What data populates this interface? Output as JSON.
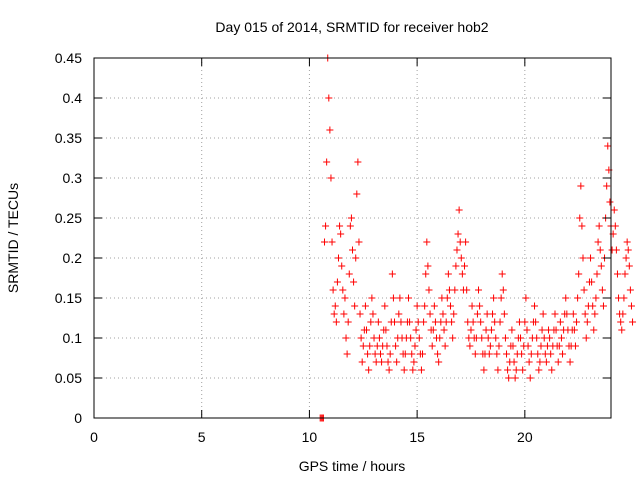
{
  "chart_data": {
    "type": "scatter",
    "title": "Day 015 of 2014, SRMTID for receiver hob2",
    "xlabel": "GPS time / hours",
    "ylabel": "SRMTID / TECUs",
    "xlim": [
      0,
      24
    ],
    "ylim": [
      0,
      0.45
    ],
    "xticks": [
      0,
      5,
      10,
      15,
      20
    ],
    "xtick_labels": [
      "0",
      "5",
      "10",
      "15",
      "20"
    ],
    "yticks": [
      0,
      0.05,
      0.1,
      0.15,
      0.2,
      0.25,
      0.3,
      0.35,
      0.4,
      0.45
    ],
    "ytick_labels": [
      "0",
      "0.05",
      "0.1",
      "0.15",
      "0.2",
      "0.25",
      "0.3",
      "0.35",
      "0.4",
      "0.45"
    ],
    "grid": true,
    "marker": "+",
    "color": "#ff0000",
    "x_start": 10.5,
    "step_hours": 0.05,
    "series": [
      {
        "name": "hob2",
        "y": [
          0.0,
          0.0,
          0.0,
          0.0,
          0.22,
          0.24,
          0.32,
          0.45,
          0.4,
          0.36,
          0.3,
          0.22,
          0.16,
          0.13,
          0.14,
          0.12,
          0.17,
          0.2,
          0.24,
          0.23,
          0.19,
          0.16,
          0.13,
          0.15,
          0.1,
          0.08,
          0.12,
          0.18,
          0.24,
          0.25,
          0.21,
          0.17,
          0.14,
          0.2,
          0.28,
          0.32,
          0.22,
          0.13,
          0.1,
          0.07,
          0.09,
          0.11,
          0.14,
          0.11,
          0.08,
          0.06,
          0.09,
          0.12,
          0.15,
          0.13,
          0.1,
          0.08,
          0.07,
          0.09,
          0.12,
          0.1,
          0.08,
          0.07,
          0.09,
          0.11,
          0.14,
          0.11,
          0.09,
          0.07,
          0.06,
          0.08,
          0.12,
          0.18,
          0.15,
          0.12,
          0.09,
          0.07,
          0.1,
          0.13,
          0.15,
          0.12,
          0.1,
          0.08,
          0.06,
          0.08,
          0.1,
          0.12,
          0.15,
          0.12,
          0.1,
          0.08,
          0.06,
          0.07,
          0.09,
          0.11,
          0.14,
          0.12,
          0.1,
          0.08,
          0.06,
          0.08,
          0.12,
          0.14,
          0.18,
          0.22,
          0.19,
          0.16,
          0.13,
          0.11,
          0.09,
          0.11,
          0.14,
          0.12,
          0.1,
          0.08,
          0.07,
          0.1,
          0.12,
          0.15,
          0.13,
          0.11,
          0.09,
          0.12,
          0.15,
          0.18,
          0.16,
          0.14,
          0.12,
          0.1,
          0.13,
          0.16,
          0.19,
          0.21,
          0.23,
          0.26,
          0.22,
          0.2,
          0.18,
          0.16,
          0.19,
          0.22,
          0.16,
          0.12,
          0.1,
          0.09,
          0.11,
          0.14,
          0.12,
          0.1,
          0.08,
          0.1,
          0.13,
          0.16,
          0.14,
          0.12,
          0.1,
          0.08,
          0.06,
          0.08,
          0.11,
          0.13,
          0.1,
          0.08,
          0.09,
          0.11,
          0.13,
          0.15,
          0.12,
          0.1,
          0.08,
          0.06,
          0.09,
          0.12,
          0.15,
          0.18,
          0.16,
          0.13,
          0.1,
          0.08,
          0.06,
          0.05,
          0.07,
          0.09,
          0.11,
          0.09,
          0.07,
          0.05,
          0.06,
          0.08,
          0.1,
          0.12,
          0.1,
          0.08,
          0.06,
          0.09,
          0.12,
          0.15,
          0.11,
          0.09,
          0.07,
          0.05,
          0.08,
          0.1,
          0.12,
          0.14,
          0.12,
          0.1,
          0.08,
          0.06,
          0.07,
          0.09,
          0.11,
          0.13,
          0.1,
          0.08,
          0.07,
          0.09,
          0.11,
          0.1,
          0.08,
          0.06,
          0.09,
          0.11,
          0.13,
          0.11,
          0.09,
          0.07,
          0.09,
          0.12,
          0.1,
          0.08,
          0.11,
          0.13,
          0.15,
          0.13,
          0.11,
          0.09,
          0.07,
          0.09,
          0.11,
          0.13,
          0.11,
          0.09,
          0.12,
          0.15,
          0.18,
          0.25,
          0.29,
          0.24,
          0.2,
          0.16,
          0.13,
          0.1,
          0.12,
          0.14,
          0.17,
          0.2,
          0.17,
          0.14,
          0.11,
          0.13,
          0.15,
          0.18,
          0.22,
          0.24,
          0.21,
          0.19,
          0.16,
          0.14,
          0.2,
          0.25,
          0.29,
          0.34,
          0.31,
          0.27,
          0.24,
          0.21,
          0.23,
          0.26,
          0.24,
          0.21,
          0.18,
          0.15,
          0.13,
          0.12,
          0.11,
          0.13,
          0.15,
          0.18,
          0.2,
          0.22,
          0.21,
          0.19,
          0.16,
          0.14,
          0.12
        ]
      }
    ]
  }
}
